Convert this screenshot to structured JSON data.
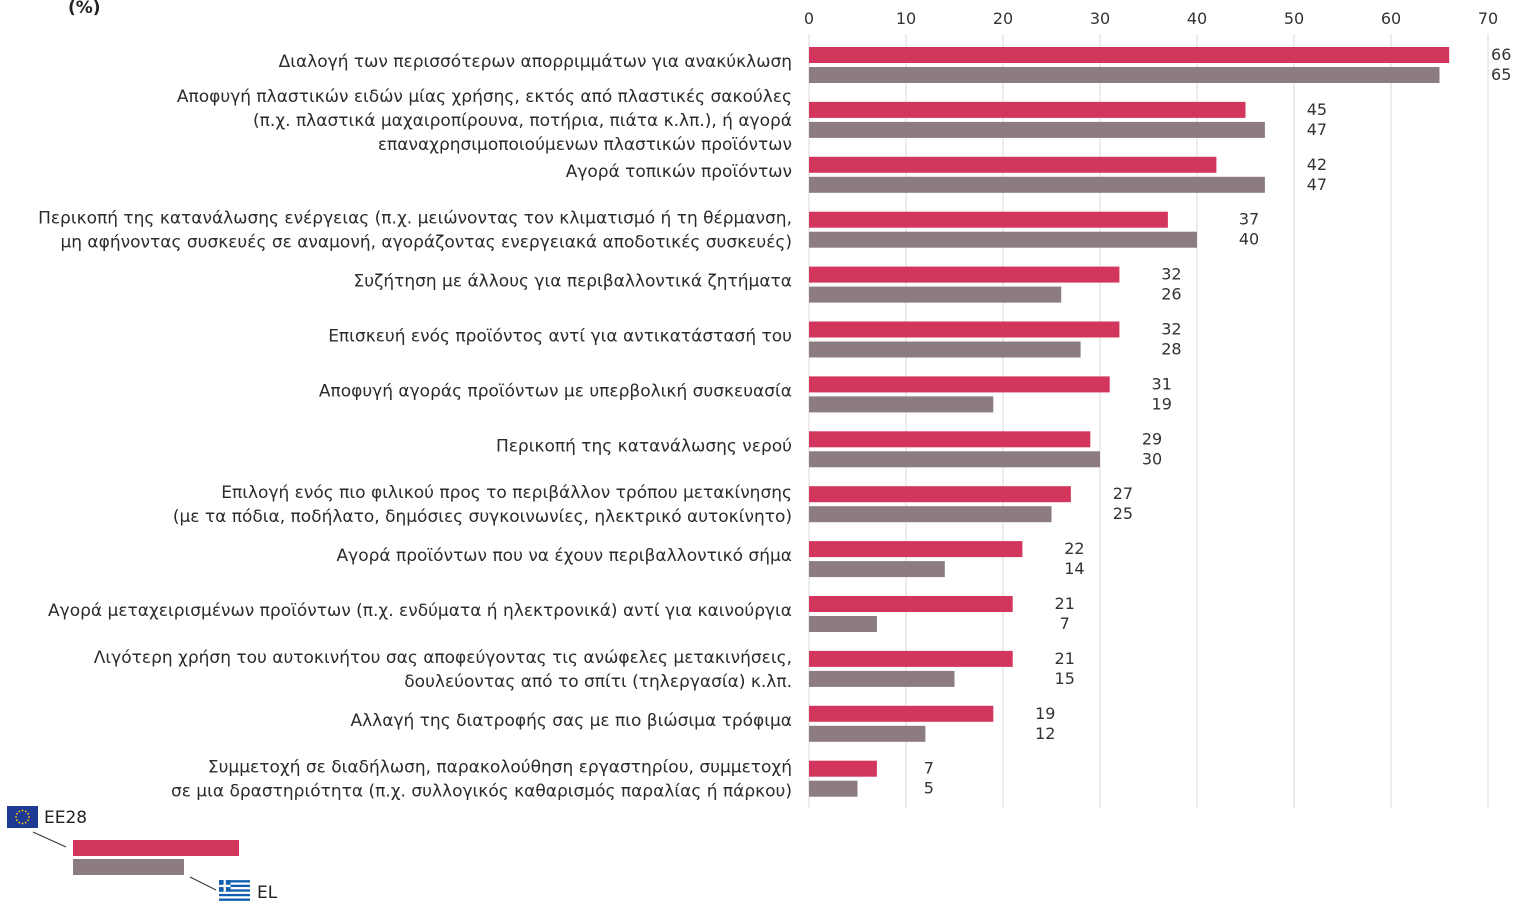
{
  "unit_label": "(%)",
  "colors": {
    "eu": "#d2365c",
    "el": "#8c7b7f",
    "grid": "#d9d9d9"
  },
  "legend": {
    "eu_label": "ΕΕ28",
    "el_label": "EL",
    "eu_flag_icon": "eu-flag-icon",
    "el_flag_icon": "greece-flag-icon"
  },
  "chart_data": {
    "type": "bar",
    "orientation": "horizontal",
    "xlim": [
      0,
      70
    ],
    "x_ticks": [
      "0",
      "10",
      "20",
      "30",
      "40",
      "50",
      "60",
      "70"
    ],
    "grid": true,
    "legend_position": "bottom-left",
    "categories": [
      [
        "Διαλογή των περισσότερων απορριμμάτων για ανακύκλωση"
      ],
      [
        "Αποφυγή πλαστικών ειδών μίας χρήσης, εκτός από πλαστικές σακούλες",
        "(π.χ. πλαστικά μαχαιροπίρουνα, ποτήρια, πιάτα κ.λπ.), ή αγορά",
        "επαναχρησιμοποιούμενων πλαστικών προϊόντων"
      ],
      [
        "Αγορά τοπικών προϊόντων"
      ],
      [
        "Περικοπή της κατανάλωσης ενέργειας (π.χ. μειώνοντας τον κλιματισμό ή τη θέρμανση,",
        "μη αφήνοντας συσκευές σε αναμονή, αγοράζοντας ενεργειακά αποδοτικές συσκευές)"
      ],
      [
        "Συζήτηση με άλλους για περιβαλλοντικά ζητήματα"
      ],
      [
        "Επισκευή ενός προϊόντος αντί για αντικατάστασή του"
      ],
      [
        "Αποφυγή αγοράς προϊόντων με υπερβολική συσκευασία"
      ],
      [
        "Περικοπή της κατανάλωσης νερού"
      ],
      [
        "Επιλογή ενός πιο φιλικού προς το περιβάλλον τρόπου μετακίνησης",
        "(με τα πόδια, ποδήλατο, δημόσιες συγκοινωνίες, ηλεκτρικό αυτοκίνητο)"
      ],
      [
        "Αγορά προϊόντων που να έχουν περιβαλλοντικό σήμα"
      ],
      [
        "Αγορά μεταχειρισμένων προϊόντων (π.χ. ενδύματα ή ηλεκτρονικά) αντί για καινούργια"
      ],
      [
        "Λιγότερη χρήση του αυτοκινήτου σας αποφεύγοντας τις ανώφελες μετακινήσεις,",
        "δουλεύοντας από το σπίτι (τηλεργασία) κ.λπ."
      ],
      [
        "Αλλαγή της διατροφής σας με πιο βιώσιμα τρόφιμα"
      ],
      [
        "Συμμετοχή σε διαδήλωση, παρακολούθηση εργαστηρίου, συμμετοχή",
        "σε μια δραστηριότητα (π.χ. συλλογικός καθαρισμός παραλίας ή πάρκου)"
      ]
    ],
    "series": [
      {
        "name": "ΕΕ28",
        "values": [
          66,
          45,
          42,
          37,
          32,
          32,
          31,
          29,
          27,
          22,
          21,
          21,
          19,
          7
        ]
      },
      {
        "name": "EL",
        "values": [
          65,
          47,
          47,
          40,
          26,
          28,
          19,
          30,
          25,
          14,
          7,
          15,
          12,
          5
        ]
      }
    ]
  }
}
